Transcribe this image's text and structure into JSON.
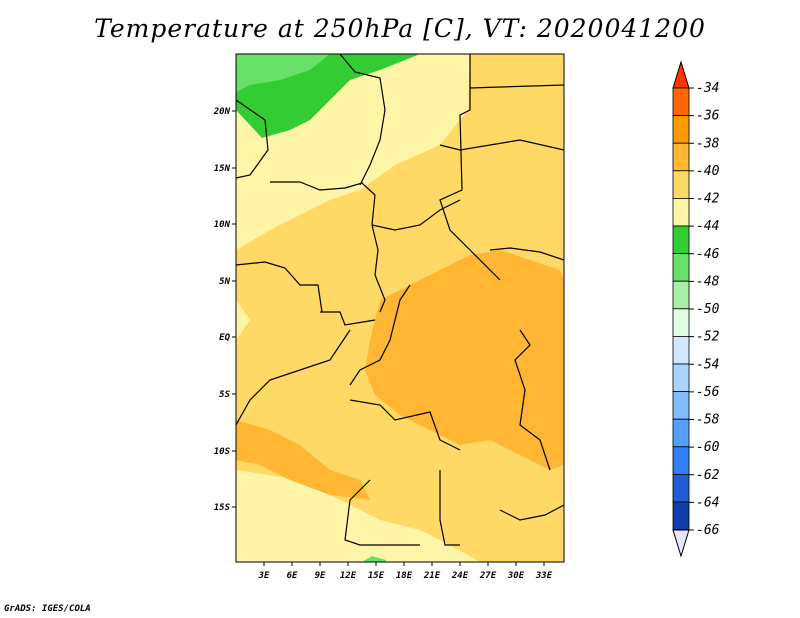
{
  "title": "Temperature at 250hPa [C], VT: 2020041200",
  "credit": "GrADS: IGES/COLA",
  "map": {
    "lat_labels": [
      "20N",
      "15N",
      "10N",
      "5N",
      "EQ",
      "5S",
      "10S",
      "15S"
    ],
    "lon_labels": [
      "3E",
      "6E",
      "9E",
      "12E",
      "15E",
      "18E",
      "21E",
      "24E",
      "27E",
      "30E",
      "33E"
    ]
  },
  "colorbar": {
    "labels": [
      "-34",
      "-36",
      "-38",
      "-40",
      "-42",
      "-44",
      "-46",
      "-48",
      "-50",
      "-52",
      "-54",
      "-56",
      "-58",
      "-60",
      "-62",
      "-64",
      "-66"
    ],
    "colors": [
      "#ff3300",
      "#ff6600",
      "#ff9900",
      "#ffb733",
      "#ffd966",
      "#fff5a6",
      "#33cc33",
      "#66e066",
      "#a6f0a6",
      "#e0ffe0",
      "#cfe8ff",
      "#a8d4ff",
      "#7fbcff",
      "#559fff",
      "#2f80ff",
      "#1f5fd6",
      "#0f3fad",
      "#06066b"
    ],
    "top_arrow_color": "#ff3300",
    "bottom_arrow_color": "#e6e6ff"
  }
}
